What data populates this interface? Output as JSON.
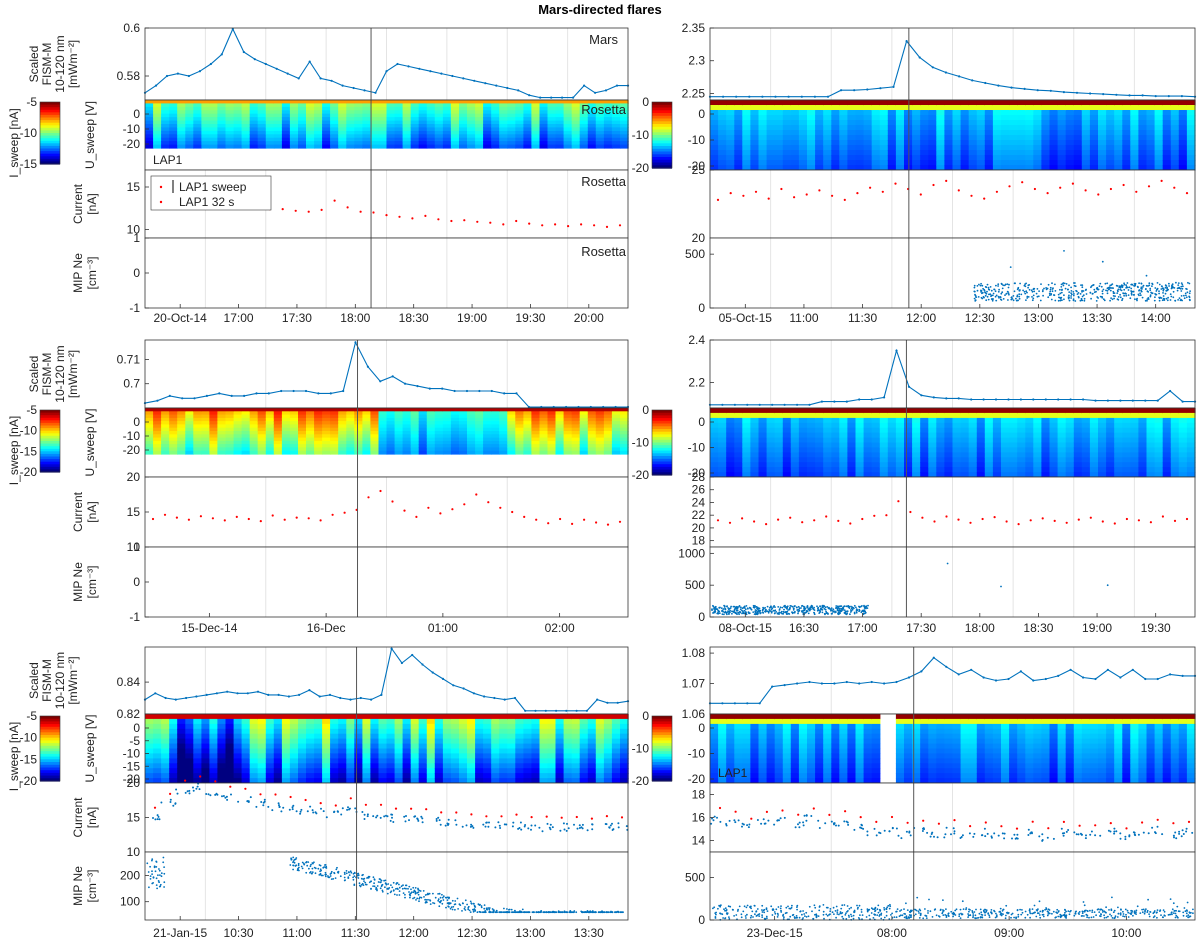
{
  "title": "Mars-directed flares",
  "colors": {
    "flux": "#0072bd",
    "lap32": "#ff0000",
    "vline": "#555555",
    "grid": "#e4e4e4"
  },
  "labels": {
    "fism": [
      "Scaled",
      "FISM-M",
      "10-120 nm",
      "[mWm⁻²]"
    ],
    "isweep": "I_sweep [nA]",
    "usweep": "U_sweep [V]",
    "current": [
      "Current",
      "[nA]"
    ],
    "mip": [
      "MIP Ne",
      "[cm⁻³]"
    ]
  },
  "chart_data": [
    {
      "type": "line",
      "event": "row1-left",
      "time_ticks": [
        "20-Oct-14",
        "17:00",
        "17:30",
        "18:00",
        "18:30",
        "19:00",
        "19:30",
        "20:00"
      ],
      "flare_time": "17:44",
      "fism": {
        "ylim": [
          0.57,
          0.6
        ],
        "ticks": [
          "0.6",
          "0.58"
        ],
        "tag": "Mars",
        "values": [
          0.573,
          0.576,
          0.58,
          0.581,
          0.58,
          0.582,
          0.585,
          0.589,
          0.6,
          0.59,
          0.587,
          0.585,
          0.583,
          0.581,
          0.579,
          0.586,
          0.579,
          0.578,
          0.576,
          0.575,
          0.574,
          0.573,
          0.582,
          0.585,
          0.584,
          0.583,
          0.582,
          0.581,
          0.58,
          0.579,
          0.578,
          0.577,
          0.576,
          0.575,
          0.574,
          0.572,
          0.571,
          0.571,
          0.571,
          0.571,
          0.576,
          0.573,
          0.574,
          0.576,
          0.576
        ]
      },
      "usweep": {
        "ticks": [
          "0",
          "-10",
          "-20"
        ],
        "tag": "Rosetta",
        "probe": "LAP1"
      },
      "colorbar": {
        "ticks": [
          "-5",
          "-10",
          "-15"
        ]
      },
      "current": {
        "ylim": [
          9,
          17
        ],
        "ticks": [
          "15",
          "10"
        ],
        "tag": "Rosetta",
        "legend": [
          "LAP1 sweep",
          "LAP1 32 s"
        ],
        "values": [
          13.6,
          13.5,
          13.3,
          13.2,
          13.0,
          12.9,
          12.8,
          12.6,
          12.5,
          12.4,
          12.4,
          12.2,
          12.1,
          12.3,
          13.4,
          12.6,
          12.1,
          12.0,
          11.7,
          11.5,
          11.3,
          11.6,
          11.2,
          11.0,
          11.1,
          10.9,
          10.8,
          10.6,
          11.0,
          10.7,
          10.5,
          10.6,
          10.4,
          10.6,
          10.5,
          10.3,
          10.5
        ]
      },
      "mip": {
        "ylim": [
          -1,
          1
        ],
        "ticks": [
          "1",
          "0",
          "-1"
        ],
        "tag": "Rosetta"
      }
    },
    {
      "type": "line",
      "event": "row1-right",
      "time_ticks": [
        "05-Oct-15",
        "11:00",
        "11:30",
        "12:00",
        "12:30",
        "13:00",
        "13:30",
        "14:00"
      ],
      "flare_time": "11:46",
      "fism": {
        "ylim": [
          2.24,
          2.35
        ],
        "ticks": [
          "2.35",
          "2.3",
          "2.25"
        ],
        "values": [
          2.245,
          2.245,
          2.245,
          2.245,
          2.245,
          2.245,
          2.245,
          2.245,
          2.245,
          2.245,
          2.255,
          2.255,
          2.256,
          2.258,
          2.26,
          2.33,
          2.305,
          2.29,
          2.282,
          2.276,
          2.27,
          2.266,
          2.262,
          2.259,
          2.257,
          2.255,
          2.254,
          2.252,
          2.251,
          2.25,
          2.249,
          2.248,
          2.247,
          2.247,
          2.246,
          2.246,
          2.246,
          2.245
        ]
      },
      "usweep": {
        "ticks": [
          "0",
          "-10",
          "-20"
        ]
      },
      "colorbar": {
        "ticks": [
          "0",
          "-10",
          "-20"
        ]
      },
      "current": {
        "ylim": [
          20,
          25
        ],
        "ticks": [
          "25",
          "20"
        ],
        "values": [
          22.8,
          23.3,
          23.1,
          23.4,
          22.9,
          23.6,
          23.0,
          23.2,
          23.5,
          23.1,
          22.8,
          23.3,
          23.7,
          23.4,
          24.0,
          23.6,
          23.2,
          23.9,
          24.2,
          23.5,
          23.1,
          22.9,
          23.4,
          23.8,
          24.1,
          23.6,
          23.3,
          23.7,
          24.0,
          23.5,
          23.2,
          23.6,
          23.9,
          23.4,
          23.8,
          24.2,
          23.7,
          23.3
        ]
      },
      "mip": {
        "ylim": [
          0,
          650
        ],
        "ticks": [
          "500",
          "0"
        ],
        "start": "12:33",
        "level": 150
      }
    },
    {
      "type": "line",
      "event": "row2-left",
      "time_ticks": [
        "15-Dec-14",
        "16-Dec",
        "01:00",
        "02:00"
      ],
      "flare_time": "00:16",
      "fism": {
        "ylim": [
          0.69,
          0.718
        ],
        "ticks": [
          "0.71",
          "0.7"
        ],
        "values": [
          0.692,
          0.693,
          0.695,
          0.694,
          0.694,
          0.695,
          0.696,
          0.695,
          0.695,
          0.696,
          0.696,
          0.697,
          0.697,
          0.697,
          0.696,
          0.696,
          0.697,
          0.717,
          0.707,
          0.701,
          0.703,
          0.7,
          0.699,
          0.698,
          0.698,
          0.697,
          0.697,
          0.697,
          0.697,
          0.696,
          0.696,
          0.69,
          0.69,
          0.69,
          0.69,
          0.69,
          0.69,
          0.69,
          0.69,
          0.69
        ]
      },
      "usweep": {
        "ticks": [
          "0",
          "-10",
          "-20"
        ]
      },
      "colorbar": {
        "ticks": [
          "-5",
          "-10",
          "-15",
          "-20"
        ]
      },
      "current": {
        "ylim": [
          10,
          20
        ],
        "ticks": [
          "20",
          "15",
          "10"
        ],
        "values": [
          14.0,
          14.6,
          14.2,
          13.9,
          14.4,
          14.1,
          13.8,
          14.3,
          14.0,
          13.7,
          14.5,
          13.9,
          14.2,
          14.1,
          13.8,
          14.6,
          14.9,
          15.3,
          17.1,
          18.0,
          16.5,
          15.2,
          14.3,
          15.6,
          14.8,
          15.4,
          16.1,
          17.5,
          16.4,
          15.6,
          15.0,
          14.3,
          13.9,
          13.4,
          14.0,
          13.3,
          13.9,
          13.5,
          13.2,
          13.6
        ]
      },
      "mip": {
        "ylim": [
          -1,
          1
        ],
        "ticks": [
          "1",
          "0",
          "-1"
        ]
      }
    },
    {
      "type": "line",
      "event": "row2-right",
      "time_ticks": [
        "08-Oct-15",
        "16:30",
        "17:00",
        "17:30",
        "18:00",
        "18:30",
        "19:00",
        "19:30"
      ],
      "flare_time": "17:21",
      "fism": {
        "ylim": [
          2.08,
          2.4
        ],
        "ticks": [
          "2.4",
          "2.2"
        ],
        "values": [
          2.095,
          2.095,
          2.095,
          2.095,
          2.095,
          2.095,
          2.095,
          2.095,
          2.095,
          2.11,
          2.11,
          2.11,
          2.12,
          2.12,
          2.13,
          2.35,
          2.18,
          2.14,
          2.13,
          2.125,
          2.125,
          2.12,
          2.12,
          2.12,
          2.12,
          2.12,
          2.12,
          2.12,
          2.12,
          2.12,
          2.12,
          2.115,
          2.115,
          2.115,
          2.115,
          2.115,
          2.115,
          2.16,
          2.11,
          2.11
        ]
      },
      "usweep": {
        "ticks": [
          "0",
          "-10",
          "-20"
        ]
      },
      "colorbar": {
        "ticks": [
          "0",
          "-10",
          "-20"
        ]
      },
      "current": {
        "ylim": [
          17,
          28
        ],
        "ticks": [
          "28",
          "26",
          "24",
          "22",
          "20",
          "18"
        ],
        "values": [
          21.2,
          20.8,
          21.5,
          21.0,
          20.6,
          21.3,
          21.6,
          20.9,
          21.2,
          21.8,
          21.1,
          20.7,
          21.4,
          21.9,
          22.0,
          24.2,
          22.5,
          21.6,
          21.0,
          21.8,
          21.3,
          20.8,
          21.4,
          21.7,
          21.0,
          20.6,
          21.2,
          21.5,
          21.1,
          20.8,
          21.3,
          21.6,
          21.0,
          20.7,
          21.4,
          21.2,
          20.9,
          21.8,
          21.1,
          21.4
        ]
      },
      "mip": {
        "ylim": [
          0,
          1100
        ],
        "ticks": [
          "1000",
          "500",
          "0"
        ],
        "end": "17:05",
        "level": 110
      }
    },
    {
      "type": "line",
      "event": "row3-left",
      "time_ticks": [
        "21-Jan-15",
        "10:30",
        "11:00",
        "11:30",
        "12:00",
        "12:30",
        "13:00",
        "13:30"
      ],
      "flare_time": "11:34",
      "fism": {
        "ylim": [
          0.82,
          0.862
        ],
        "ticks": [
          "0.84",
          "0.82"
        ],
        "values": [
          0.829,
          0.833,
          0.83,
          0.829,
          0.83,
          0.831,
          0.832,
          0.833,
          0.834,
          0.833,
          0.833,
          0.834,
          0.832,
          0.832,
          0.831,
          0.832,
          0.835,
          0.831,
          0.832,
          0.83,
          0.829,
          0.83,
          0.829,
          0.832,
          0.861,
          0.852,
          0.857,
          0.851,
          0.846,
          0.842,
          0.838,
          0.836,
          0.833,
          0.831,
          0.83,
          0.829,
          0.83,
          0.822,
          0.822,
          0.822,
          0.822,
          0.822,
          0.822,
          0.822,
          0.829,
          0.827,
          0.827,
          0.828
        ]
      },
      "usweep": {
        "ticks": [
          "0",
          "-5",
          "-10",
          "-15",
          "-20"
        ]
      },
      "colorbar": {
        "ticks": [
          "-5",
          "-10",
          "-15",
          "-20"
        ]
      },
      "current": {
        "ylim": [
          10,
          20
        ],
        "ticks": [
          "20",
          "15",
          "10"
        ],
        "values": [
          15.0,
          17.2,
          19.0,
          19.4,
          18.8,
          18.0,
          17.5,
          17.0,
          16.6,
          16.3,
          16.0,
          15.7,
          15.5,
          16.3,
          15.3,
          15.1,
          14.9,
          14.7,
          14.6,
          14.4,
          14.2,
          14.0,
          13.9,
          13.8,
          13.7,
          13.6,
          13.5,
          13.6,
          13.4,
          13.5,
          13.6,
          13.7
        ]
      },
      "mip": {
        "ylim": [
          30,
          290
        ],
        "ticks": [
          "200",
          "100"
        ]
      }
    },
    {
      "type": "line",
      "event": "row3-right",
      "time_ticks": [
        "23-Dec-15",
        "08:00",
        "09:00",
        "10:00"
      ],
      "flare_time": "08:16",
      "fism": {
        "ylim": [
          1.06,
          1.082
        ],
        "ticks": [
          "1.08",
          "1.07",
          "1.06"
        ],
        "values": [
          1.0635,
          1.0635,
          1.0635,
          1.0635,
          1.0635,
          1.069,
          1.0695,
          1.07,
          1.0705,
          1.07,
          1.07,
          1.0705,
          1.07,
          1.0705,
          1.07,
          1.0705,
          1.072,
          1.074,
          1.0785,
          1.0755,
          1.073,
          1.0745,
          1.072,
          1.071,
          1.0715,
          1.074,
          1.071,
          1.0715,
          1.0725,
          1.0745,
          1.072,
          1.0715,
          1.0745,
          1.072,
          1.0745,
          1.0715,
          1.0715,
          1.073,
          1.0725,
          1.0725
        ]
      },
      "usweep": {
        "ticks": [
          "0",
          "-10",
          "-20"
        ],
        "probe": "LAP1"
      },
      "colorbar": {
        "ticks": [
          "0",
          "-10",
          "-20"
        ]
      },
      "current": {
        "ylim": [
          13,
          19
        ],
        "ticks": [
          "18",
          "16",
          "14"
        ],
        "values": [
          15.8,
          15.6,
          15.2,
          15.5,
          15.7,
          15.4,
          15.9,
          15.3,
          15.6,
          15.2,
          14.7,
          15.1,
          14.5,
          14.9,
          14.6,
          14.8,
          14.4,
          14.7,
          14.5,
          14.2,
          14.6,
          14.3,
          14.7,
          14.4,
          14.5,
          14.8,
          14.3,
          14.6,
          14.9,
          14.5,
          14.7
        ]
      },
      "mip": {
        "ylim": [
          0,
          800
        ],
        "ticks": [
          "500",
          "0"
        ]
      }
    }
  ]
}
